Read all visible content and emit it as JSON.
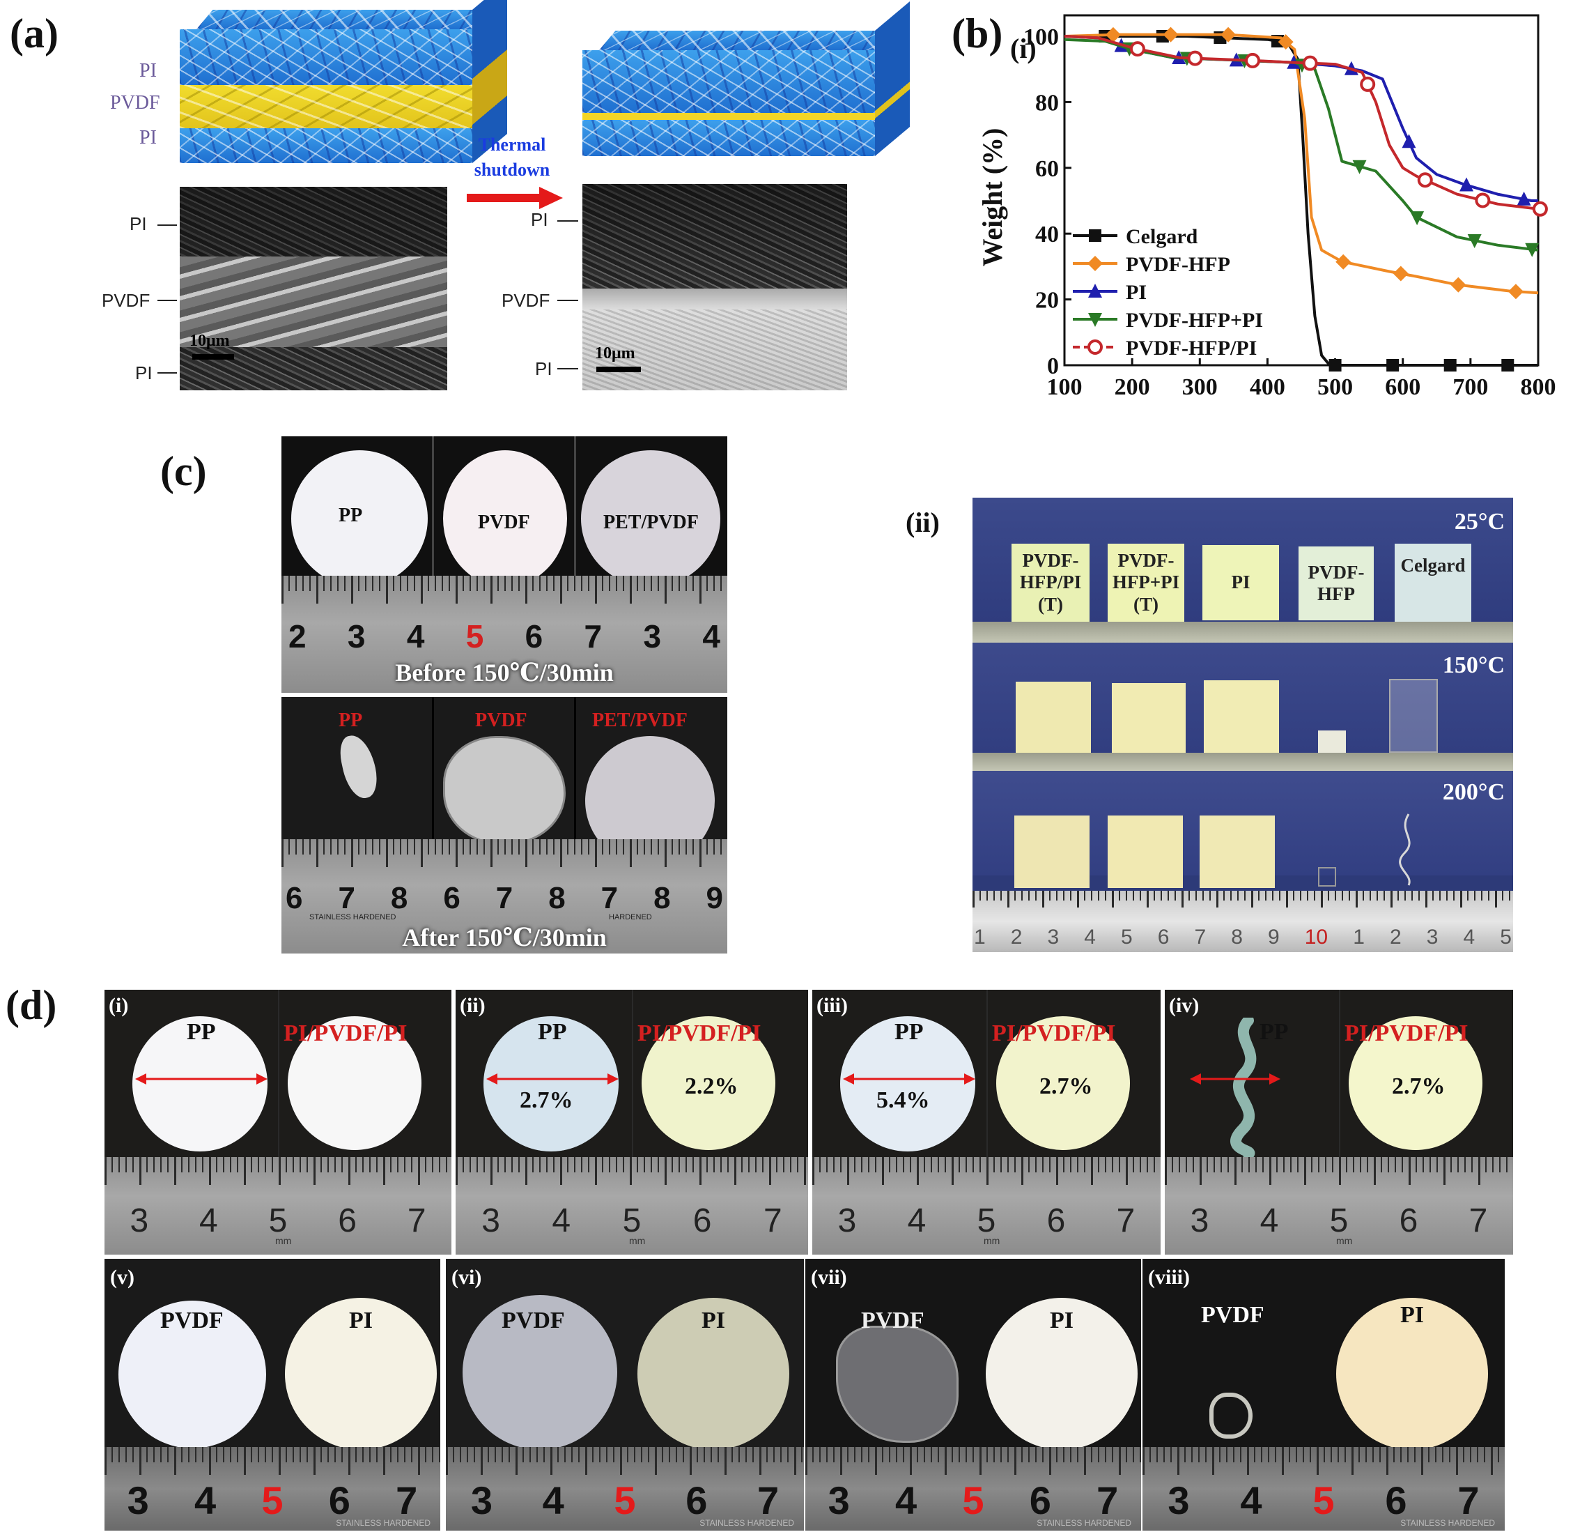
{
  "panel_a": {
    "label": "(a)",
    "layers_left": [
      "PI",
      "PVDF",
      "PI"
    ],
    "arrow_text_line1": "Thermal",
    "arrow_text_line2": "shutdown",
    "sem_left": {
      "top": "PI",
      "mid": "PVDF",
      "bottom": "PI",
      "scale": "10μm"
    },
    "sem_right": {
      "top": "PI",
      "mid": "PVDF",
      "bottom": "PI",
      "scale": "10μm"
    }
  },
  "panel_b": {
    "label": "(b)",
    "sub_label": "(i)",
    "chart_data": {
      "type": "line",
      "title": "",
      "xlabel": "",
      "ylabel": "Weight (%)",
      "xlim": [
        100,
        800
      ],
      "ylim": [
        0,
        100
      ],
      "xticks": [
        "100",
        "200",
        "300",
        "400",
        "500",
        "600",
        "700",
        "800"
      ],
      "yticks": [
        "0",
        "20",
        "40",
        "60",
        "80",
        "100"
      ],
      "legend_position": "bottom-left",
      "series": [
        {
          "name": "Celgard",
          "color": "#111111",
          "marker": "square",
          "x": [
            100,
            160,
            220,
            280,
            340,
            400,
            430,
            445,
            452,
            460,
            470,
            480,
            490,
            500,
            560,
            630,
            700,
            760,
            800
          ],
          "y": [
            100,
            100,
            100,
            100,
            99.5,
            99,
            98,
            93,
            70,
            40,
            15,
            3,
            0.5,
            0,
            0,
            0,
            0,
            0,
            0
          ]
        },
        {
          "name": "PVDF-HFP",
          "color": "#f08a24",
          "marker": "diamond",
          "x": [
            100,
            180,
            260,
            340,
            420,
            440,
            455,
            465,
            480,
            510,
            580,
            620,
            680,
            760,
            800
          ],
          "y": [
            100,
            100.5,
            100.5,
            100.5,
            99.5,
            96,
            75,
            45,
            35,
            31.5,
            28.5,
            27,
            24.5,
            22.5,
            22
          ]
        },
        {
          "name": "PI",
          "color": "#1f1fae",
          "marker": "triangle-up",
          "x": [
            100,
            150,
            200,
            260,
            320,
            380,
            440,
            500,
            540,
            570,
            600,
            620,
            650,
            690,
            740,
            790,
            800
          ],
          "y": [
            100,
            99.5,
            96,
            93.5,
            93,
            92.5,
            92,
            91,
            89.5,
            87,
            72,
            63,
            58,
            55,
            52,
            50,
            50
          ]
        },
        {
          "name": "PVDF-HFP+PI",
          "color": "#2a7a26",
          "marker": "triangle-down",
          "x": [
            100,
            160,
            200,
            260,
            320,
            380,
            440,
            470,
            490,
            510,
            560,
            600,
            620,
            680,
            740,
            800
          ],
          "y": [
            99,
            98.5,
            96,
            93.5,
            93,
            92.5,
            92,
            90,
            78,
            62,
            59,
            50,
            45,
            39,
            36.5,
            35
          ]
        },
        {
          "name": "PVDF-HFP/PI",
          "color": "#c4282c",
          "marker": "circle",
          "x": [
            100,
            150,
            200,
            270,
            330,
            390,
            440,
            500,
            540,
            560,
            580,
            600,
            620,
            680,
            740,
            800
          ],
          "y": [
            100,
            99.5,
            96.5,
            93.5,
            93,
            92.5,
            92,
            91.5,
            89,
            80,
            67,
            60,
            57.5,
            52,
            49,
            47.5
          ]
        }
      ]
    }
  },
  "panel_c": {
    "label": "(c)",
    "before": {
      "samples": [
        "PP",
        "PVDF",
        "PET/PVDF"
      ],
      "ruler_numbers": [
        "2",
        "3",
        "4",
        "5",
        "6",
        "7",
        "3",
        "4"
      ],
      "caption": "Before 150℃/30min"
    },
    "after": {
      "samples": [
        "PP",
        "PVDF",
        "PET/PVDF"
      ],
      "ruler_numbers": [
        "6",
        "7",
        "8",
        "6",
        "7",
        "8",
        "7",
        "8",
        "9"
      ],
      "caption": "After 150℃/30min",
      "ruler_small": [
        "STAINLESS HARDENED",
        "HARDENED"
      ]
    }
  },
  "panel_ii": {
    "label": "(ii)",
    "row_25": {
      "temp": "25°C",
      "tags": [
        {
          "l1": "PVDF-",
          "l2": "HFP/PI",
          "l3": "(T)"
        },
        {
          "l1": "PVDF-",
          "l2": "HFP+PI",
          "l3": "(T)"
        },
        {
          "l1": "PI",
          "l2": "",
          "l3": ""
        },
        {
          "l1": "PVDF-",
          "l2": "HFP",
          "l3": ""
        },
        {
          "l1": "Celgard",
          "l2": "",
          "l3": ""
        }
      ]
    },
    "row_150": {
      "temp": "150°C"
    },
    "row_200": {
      "temp": "200°C"
    },
    "ruler_numbers": [
      "1",
      "2",
      "3",
      "4",
      "5",
      "6",
      "7",
      "8",
      "9",
      "10",
      "1",
      "2",
      "3",
      "4",
      "5"
    ]
  },
  "panel_d": {
    "label": "(d)",
    "top_row": [
      {
        "tag": "(i)",
        "left": "PP",
        "right": "PI/PVDF/PI",
        "left_pct": "",
        "right_pct": "",
        "ruler": [
          "3",
          "4",
          "5",
          "6",
          "7"
        ]
      },
      {
        "tag": "(ii)",
        "left": "PP",
        "right": "PI/PVDF/PI",
        "left_pct": "2.7%",
        "right_pct": "2.2%",
        "ruler": [
          "3",
          "4",
          "5",
          "6",
          "7"
        ]
      },
      {
        "tag": "(iii)",
        "left": "PP",
        "right": "PI/PVDF/PI",
        "left_pct": "5.4%",
        "right_pct": "2.7%",
        "ruler": [
          "3",
          "4",
          "5",
          "6",
          "7"
        ]
      },
      {
        "tag": "(iv)",
        "left": "PP",
        "right": "PI/PVDF/PI",
        "left_pct": "",
        "right_pct": "2.7%",
        "ruler": [
          "3",
          "4",
          "5",
          "6",
          "7"
        ]
      }
    ],
    "ruler_unit": "mm",
    "bottom_row": [
      {
        "tag": "(v)",
        "left": "PVDF",
        "right": "PI",
        "ruler": [
          "3",
          "4",
          "5",
          "6",
          "7"
        ]
      },
      {
        "tag": "(vi)",
        "left": "PVDF",
        "right": "PI",
        "ruler": [
          "3",
          "4",
          "5",
          "6",
          "7"
        ]
      },
      {
        "tag": "(vii)",
        "left": "PVDF",
        "right": "PI",
        "ruler": [
          "3",
          "4",
          "5",
          "6",
          "7"
        ]
      },
      {
        "tag": "(viii)",
        "left": "PVDF",
        "right": "PI",
        "ruler": [
          "3",
          "4",
          "5",
          "6",
          "7"
        ]
      }
    ],
    "ruler_brand": "STAINLESS HARDENED"
  },
  "colors": {
    "red_label": "#d42020",
    "accent_arrow": "#e41a1a",
    "blue_text": "#1a3ce0"
  }
}
